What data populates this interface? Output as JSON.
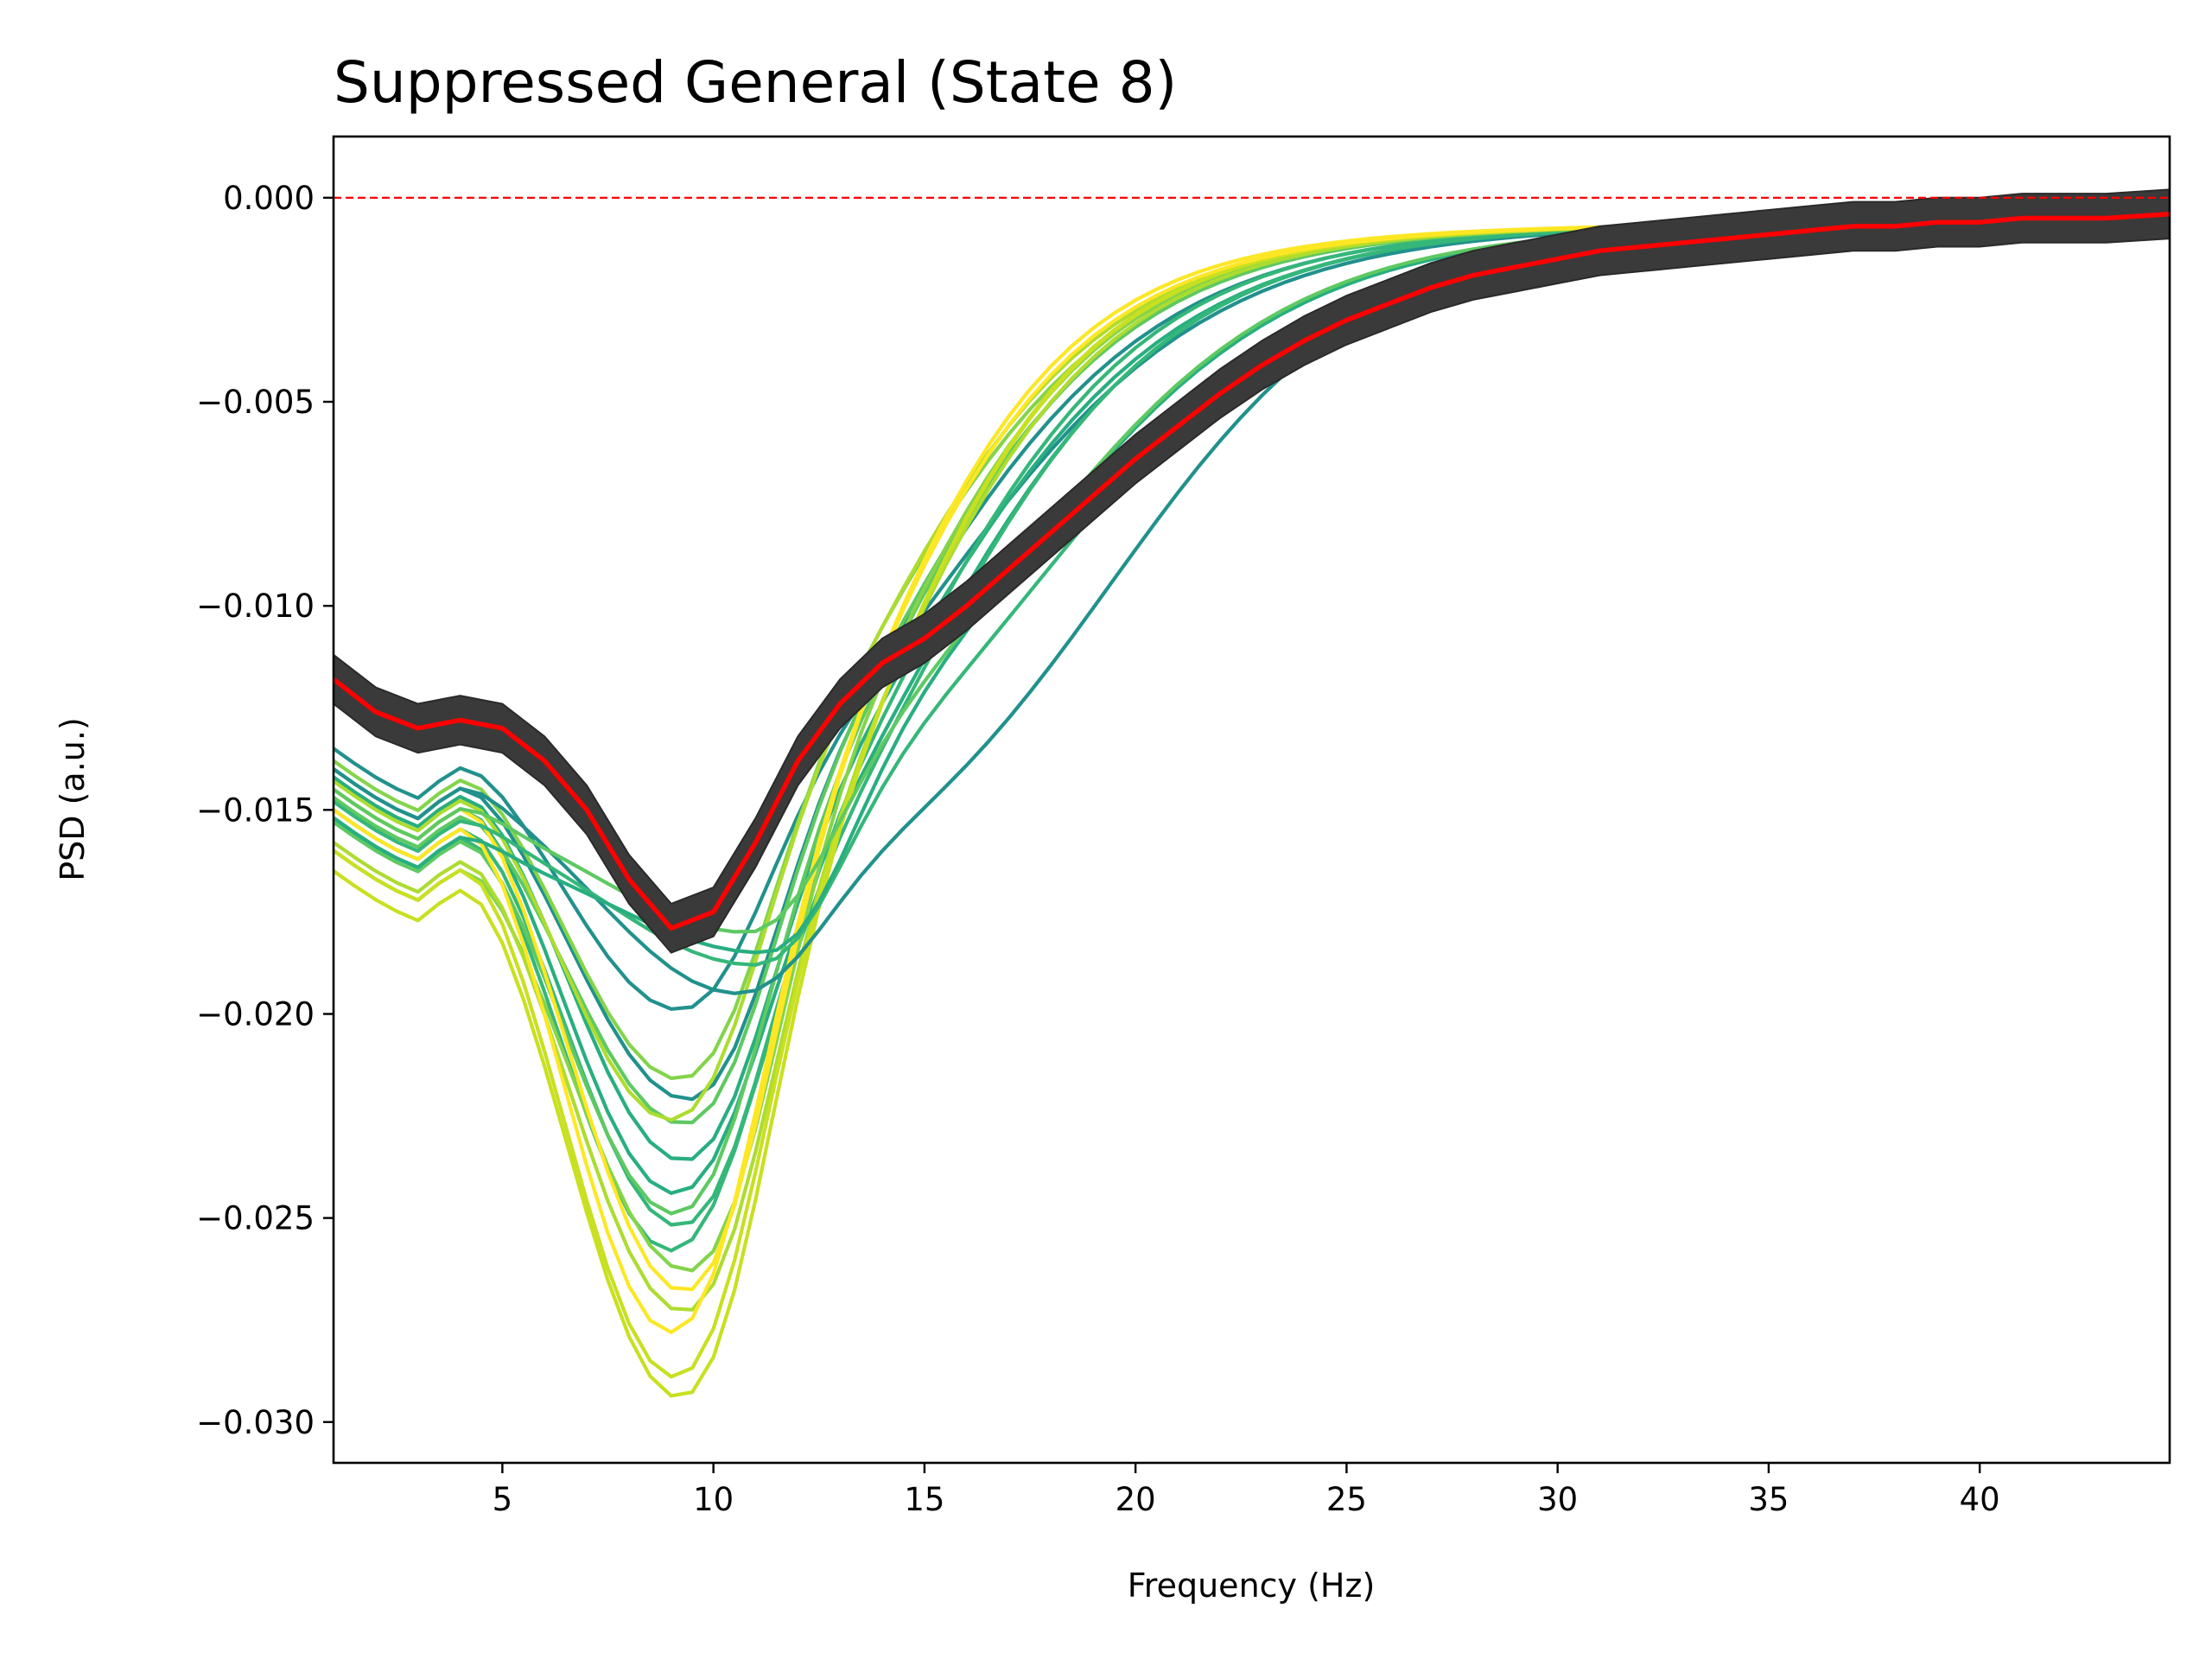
{
  "chart_data": {
    "type": "line",
    "title": "Suppressed General (State 8)",
    "xlabel": "Frequency (Hz)",
    "ylabel": "PSD (a.u.)",
    "xlim": [
      1,
      44.5
    ],
    "ylim": [
      -0.031,
      0.0015
    ],
    "xticks": [
      5,
      10,
      15,
      20,
      25,
      30,
      35,
      40
    ],
    "yticks": [
      0.0,
      -0.005,
      -0.01,
      -0.015,
      -0.02,
      -0.025,
      -0.03
    ],
    "xtick_labels": [
      "5",
      "10",
      "15",
      "20",
      "25",
      "30",
      "35",
      "40"
    ],
    "ytick_labels": [
      "0.000",
      "−0.005",
      "−0.010",
      "−0.015",
      "−0.020",
      "−0.025",
      "−0.030"
    ],
    "grid": false,
    "legend": "none",
    "colors": {
      "reference_line": "#ff0000",
      "mean_line": "#ff0000",
      "band_fill": "#3a3a3a",
      "series_palette": [
        "#21918c",
        "#28ae80",
        "#35b779",
        "#5ec962",
        "#84d44b",
        "#addc30",
        "#c8e020",
        "#fde725"
      ]
    },
    "reference_line": {
      "y": 0.0,
      "style": "dashed",
      "color": "#ff0000"
    },
    "mean": {
      "x": [
        1,
        2,
        3,
        4,
        5,
        6,
        7,
        8,
        9,
        10,
        11,
        12,
        13,
        14,
        15,
        16,
        17,
        18,
        19,
        20,
        21,
        22,
        23,
        24,
        25,
        26,
        27,
        28,
        29,
        30,
        31,
        32,
        33,
        34,
        35,
        36,
        37,
        38,
        39,
        40,
        41,
        42,
        43,
        44.5
      ],
      "y": [
        -0.0118,
        -0.0126,
        -0.013,
        -0.0128,
        -0.013,
        -0.0138,
        -0.015,
        -0.0167,
        -0.0179,
        -0.0175,
        -0.0158,
        -0.0138,
        -0.0124,
        -0.0114,
        -0.0108,
        -0.01,
        -0.0091,
        -0.0082,
        -0.0073,
        -0.0064,
        -0.0056,
        -0.0048,
        -0.0041,
        -0.0035,
        -0.003,
        -0.0026,
        -0.0022,
        -0.0019,
        -0.0017,
        -0.0015,
        -0.0013,
        -0.0012,
        -0.0011,
        -0.001,
        -0.0009,
        -0.0008,
        -0.0007,
        -0.0007,
        -0.0006,
        -0.0006,
        -0.0005,
        -0.0005,
        -0.0005,
        -0.0004
      ],
      "band_halfwidth": 0.0006
    },
    "series_count": 20,
    "series": [
      {
        "min_freq": 9.2,
        "min": -0.0199,
        "base": -0.0135,
        "center": 15.0,
        "width": 3.2,
        "color": "#21918c"
      },
      {
        "min_freq": 9.4,
        "min": -0.0221,
        "base": -0.014,
        "center": 14.0,
        "width": 3.0,
        "color": "#21918c"
      },
      {
        "min_freq": 9.3,
        "min": -0.0236,
        "base": -0.0142,
        "center": 14.2,
        "width": 3.1,
        "color": "#28ae80"
      },
      {
        "min_freq": 9.1,
        "min": -0.0244,
        "base": -0.0145,
        "center": 14.5,
        "width": 3.0,
        "color": "#28ae80"
      },
      {
        "min_freq": 9.2,
        "min": -0.0252,
        "base": -0.015,
        "center": 14.0,
        "width": 2.9,
        "color": "#35b779"
      },
      {
        "min_freq": 9.0,
        "min": -0.0258,
        "base": -0.0152,
        "center": 14.3,
        "width": 3.0,
        "color": "#35b779"
      },
      {
        "min_freq": 9.3,
        "min": -0.0227,
        "base": -0.0147,
        "center": 13.8,
        "width": 2.8,
        "color": "#5ec962"
      },
      {
        "min_freq": 9.1,
        "min": -0.0249,
        "base": -0.0153,
        "center": 13.5,
        "width": 2.8,
        "color": "#5ec962"
      },
      {
        "min_freq": 9.4,
        "min": -0.0263,
        "base": -0.016,
        "center": 13.2,
        "width": 2.7,
        "color": "#84d44b"
      },
      {
        "min_freq": 9.2,
        "min": -0.0216,
        "base": -0.0138,
        "center": 13.6,
        "width": 2.8,
        "color": "#84d44b"
      },
      {
        "min_freq": 9.0,
        "min": -0.0226,
        "base": -0.0143,
        "center": 13.4,
        "width": 2.7,
        "color": "#addc30"
      },
      {
        "min_freq": 9.3,
        "min": -0.0273,
        "base": -0.0158,
        "center": 13.3,
        "width": 2.7,
        "color": "#addc30"
      },
      {
        "min_freq": 9.2,
        "min": -0.0294,
        "base": -0.0165,
        "center": 13.0,
        "width": 2.6,
        "color": "#c8e020"
      },
      {
        "min_freq": 9.1,
        "min": -0.0289,
        "base": -0.016,
        "center": 13.1,
        "width": 2.6,
        "color": "#c8e020"
      },
      {
        "min_freq": 9.0,
        "min": -0.0278,
        "base": -0.015,
        "center": 12.8,
        "width": 2.5,
        "color": "#fde725"
      },
      {
        "min_freq": 9.3,
        "min": -0.0268,
        "base": -0.0145,
        "center": 12.9,
        "width": 2.6,
        "color": "#fde725"
      },
      {
        "min_freq": 10.6,
        "min": -0.0195,
        "base": -0.014,
        "center": 19.3,
        "width": 3.0,
        "color": "#21918c"
      },
      {
        "min_freq": 11.0,
        "min": -0.0188,
        "base": -0.0148,
        "center": 17.6,
        "width": 3.3,
        "color": "#35b779"
      },
      {
        "min_freq": 11.2,
        "min": -0.0185,
        "base": -0.0152,
        "center": 16.8,
        "width": 3.2,
        "color": "#28ae80"
      },
      {
        "min_freq": 10.8,
        "min": -0.018,
        "base": -0.0145,
        "center": 17.0,
        "width": 3.1,
        "color": "#5ec962"
      }
    ]
  }
}
